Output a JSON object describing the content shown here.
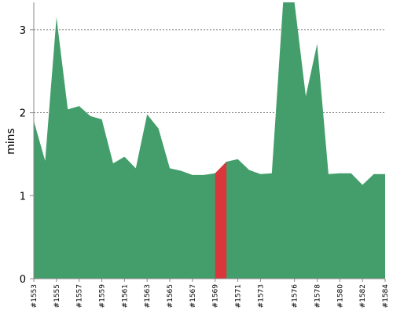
{
  "chart_data": {
    "type": "area",
    "ylabel": "mins",
    "xlabel": "",
    "ylim": [
      0,
      3.33
    ],
    "grid": true,
    "y_ticks": [
      0,
      1,
      2,
      3
    ],
    "x": [
      "#1553",
      "#1554",
      "#1555",
      "#1556",
      "#1557",
      "#1558",
      "#1559",
      "#1560",
      "#1561",
      "#1562",
      "#1563",
      "#1564",
      "#1565",
      "#1566",
      "#1567",
      "#1568",
      "#1569",
      "#1570",
      "#1571",
      "#1572",
      "#1573",
      "#1574",
      "#1575",
      "#1576",
      "#1577",
      "#1578",
      "#1579",
      "#1580",
      "#1581",
      "#1582",
      "#1583",
      "#1584"
    ],
    "x_tick_labels": [
      "#1553",
      "#1555",
      "#1557",
      "#1559",
      "#1561",
      "#1563",
      "#1565",
      "#1567",
      "#1569",
      "#1571",
      "#1573",
      "#1576",
      "#1578",
      "#1580",
      "#1582",
      "#1584"
    ],
    "series": [
      {
        "color": "#449e6c",
        "values": [
          1.9,
          1.42,
          3.15,
          2.04,
          2.08,
          1.96,
          1.92,
          1.39,
          1.47,
          1.33,
          1.98,
          1.81,
          1.33,
          1.3,
          1.25,
          1.25,
          1.27,
          1.41,
          1.44,
          1.31,
          1.26,
          1.27,
          3.33,
          3.33,
          2.2,
          2.83,
          1.26,
          1.27,
          1.27,
          1.13,
          1.26,
          1.26
        ]
      }
    ],
    "highlight": {
      "x": "#1570",
      "color": "#d9373b"
    }
  }
}
